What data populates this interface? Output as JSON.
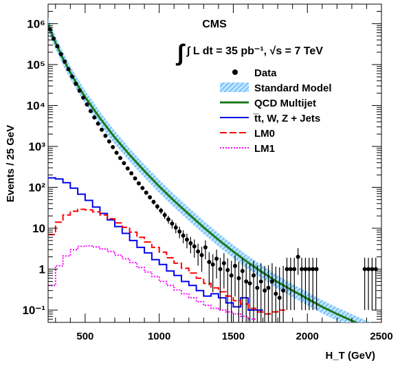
{
  "chart_data": {
    "type": "line",
    "title": "CMS",
    "luminosity": "∫ L dt = 35 pb⁻¹, √s = 7 TeV",
    "xlabel": "H_T (GeV)",
    "ylabel": "Events / 25 GeV",
    "xlim": [
      250,
      2500
    ],
    "ylim": [
      0.05,
      3000000
    ],
    "yscale": "log",
    "x_ticks": [
      500,
      1000,
      1500,
      2000,
      2500
    ],
    "y_ticks": [
      {
        "value": 0.1,
        "label": "10⁻¹"
      },
      {
        "value": 1,
        "label": "1"
      },
      {
        "value": 10,
        "label": "10"
      },
      {
        "value": 100,
        "label": "10²"
      },
      {
        "value": 1000,
        "label": "10³"
      },
      {
        "value": 10000,
        "label": "10⁴"
      },
      {
        "value": 100000,
        "label": "10⁵"
      },
      {
        "value": 1000000,
        "label": "10⁶"
      }
    ],
    "legend_position": "top-right",
    "legend": [
      {
        "label": "Data",
        "style": "marker"
      },
      {
        "label": "Standard Model",
        "style": "band"
      },
      {
        "label": "QCD Multijet",
        "style": "line"
      },
      {
        "label": "t̅t, W, Z + Jets",
        "style": "line"
      },
      {
        "label": "LM0",
        "style": "dashed"
      },
      {
        "label": "LM1",
        "style": "dotted"
      }
    ],
    "colors": {
      "data": "#000000",
      "standard_model_band": "#3fa9f5",
      "qcd": "#1a7a1a",
      "ewk": "#0000ee",
      "lm0": "#ff0000",
      "lm1": "#ff00ff"
    },
    "series": [
      {
        "name": "Data",
        "x": [
          262,
          287,
          312,
          337,
          362,
          387,
          412,
          437,
          462,
          487,
          512,
          537,
          562,
          587,
          612,
          637,
          662,
          687,
          712,
          737,
          762,
          787,
          812,
          837,
          862,
          887,
          912,
          937,
          962,
          987,
          1012,
          1037,
          1062,
          1087,
          1112,
          1137,
          1162,
          1187,
          1212,
          1237,
          1262,
          1287,
          1312,
          1337,
          1362,
          1387,
          1412,
          1437,
          1462,
          1487,
          1512,
          1537,
          1562,
          1587,
          1612,
          1637,
          1662,
          1687,
          1712,
          1737,
          1762,
          1787,
          1812,
          1837,
          1862,
          1887,
          1912,
          1937,
          1962,
          1987,
          2012,
          2037,
          2062,
          2387,
          2412,
          2437,
          2462
        ],
        "y": [
          720000,
          430000,
          280000,
          180000,
          118000,
          77000,
          51000,
          34000,
          23000,
          15500,
          10600,
          7300,
          5100,
          3600,
          2550,
          1820,
          1320,
          960,
          700,
          520,
          390,
          290,
          220,
          165,
          125,
          96,
          74,
          57,
          44,
          34,
          27,
          21,
          16.5,
          13,
          10.4,
          8.3,
          6.6,
          5.3,
          4.3,
          3.6,
          2.7,
          2.2,
          3.4,
          1.5,
          1.3,
          1.8,
          1.0,
          1.4,
          0.95,
          0.7,
          1.2,
          0.6,
          0.9,
          0.5,
          0.45,
          0.7,
          0.35,
          0.5,
          0.3,
          0.35,
          0.5,
          0.25,
          0.2,
          0.3,
          1,
          1,
          1,
          2,
          1,
          1,
          1,
          1,
          1,
          1,
          1,
          1,
          1
        ]
      },
      {
        "name": "QCD Multijet",
        "x": [
          250,
          300,
          350,
          400,
          450,
          500,
          600,
          700,
          800,
          900,
          1000,
          1100,
          1200,
          1300,
          1400,
          1500,
          1600,
          1700,
          1800,
          1900,
          2000,
          2100,
          2200,
          2300,
          2400,
          2475
        ],
        "y": [
          950000,
          340000,
          140000,
          64000,
          31000,
          16000,
          4900,
          1650,
          620,
          250,
          105,
          47,
          22,
          10.5,
          5.2,
          2.7,
          1.45,
          0.82,
          0.48,
          0.3,
          0.19,
          0.12,
          0.08,
          0.055,
          0.038,
          0.03
        ]
      },
      {
        "name": "Standard Model",
        "x": [
          250,
          300,
          350,
          400,
          450,
          500,
          600,
          700,
          800,
          900,
          1000,
          1100,
          1200,
          1300,
          1400,
          1500,
          1600,
          1700,
          1800,
          1900,
          2000,
          2100,
          2200,
          2300,
          2400,
          2475
        ],
        "y": [
          950000,
          340000,
          140000,
          64000,
          31000,
          16000,
          4900,
          1650,
          620,
          250,
          105,
          47,
          22,
          10.5,
          5.2,
          2.7,
          1.45,
          0.82,
          0.48,
          0.3,
          0.19,
          0.12,
          0.08,
          0.055,
          0.038,
          0.03
        ]
      },
      {
        "name": "t̅t, W, Z + Jets",
        "x": [
          250,
          300,
          350,
          400,
          450,
          500,
          550,
          600,
          650,
          700,
          750,
          800,
          850,
          900,
          950,
          1000,
          1050,
          1100,
          1150,
          1200,
          1250,
          1300,
          1350,
          1400,
          1450,
          1500,
          1550,
          1600,
          1650
        ],
        "y": [
          170,
          160,
          130,
          95,
          68,
          48,
          33,
          23,
          16,
          11,
          7.5,
          5,
          3.4,
          2.5,
          1.7,
          1.3,
          0.9,
          0.7,
          0.5,
          0.4,
          0.3,
          0.22,
          0.25,
          0.2,
          0.15,
          0.12,
          0.2,
          0.1,
          0.1
        ]
      },
      {
        "name": "LM0",
        "x": [
          250,
          300,
          350,
          400,
          450,
          500,
          550,
          600,
          650,
          700,
          750,
          800,
          850,
          900,
          950,
          1000,
          1050,
          1100,
          1150,
          1200,
          1250,
          1300,
          1350,
          1400,
          1450,
          1500,
          1550,
          1600,
          1650,
          1700,
          1750,
          1800
        ],
        "y": [
          7,
          14,
          21,
          26,
          29,
          28,
          25,
          21,
          17,
          13.5,
          10.5,
          8,
          6,
          4.6,
          3.4,
          2.6,
          1.9,
          1.4,
          1.05,
          0.8,
          0.6,
          0.45,
          0.35,
          0.28,
          0.22,
          0.17,
          0.14,
          0.11,
          0.09,
          0.08,
          0.09,
          0.1
        ]
      },
      {
        "name": "LM1",
        "x": [
          250,
          300,
          350,
          400,
          450,
          500,
          550,
          600,
          650,
          700,
          750,
          800,
          850,
          900,
          950,
          1000,
          1050,
          1100,
          1150,
          1200,
          1250,
          1300,
          1350,
          1400,
          1450,
          1500,
          1550,
          1600
        ],
        "y": [
          0.4,
          1.2,
          2.1,
          3.0,
          3.6,
          3.7,
          3.5,
          3.1,
          2.7,
          2.2,
          1.8,
          1.45,
          1.1,
          0.85,
          0.66,
          0.5,
          0.4,
          0.31,
          0.25,
          0.2,
          0.16,
          0.13,
          0.11,
          0.1,
          0.09,
          0.08,
          0.07,
          0.06
        ]
      }
    ]
  }
}
